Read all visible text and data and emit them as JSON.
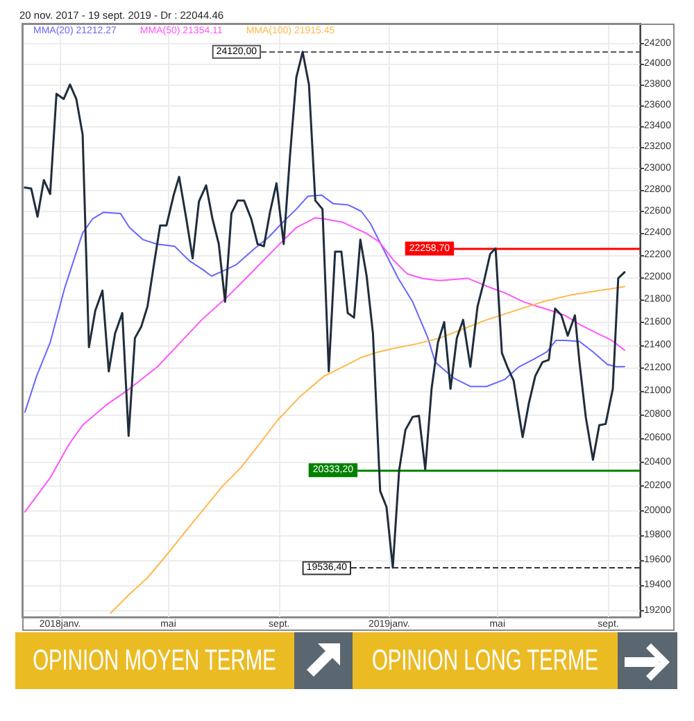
{
  "chart_data": {
    "type": "line",
    "title": "20 nov. 2017 - 19 sept. 2019 - Dr : 22044.46",
    "log": true,
    "grid": true,
    "legend": "top left",
    "xlim": [
      "2017-11-20",
      "2019-10-06"
    ],
    "xticks": [
      {
        "value": "2018-01-01",
        "label": "2018janv."
      },
      {
        "value": "2018-05-01",
        "label": "mai"
      },
      {
        "value": "2018-09-01",
        "label": "sept."
      },
      {
        "value": "2019-01-01",
        "label": "2019janv."
      },
      {
        "value": "2019-05-01",
        "label": "mai"
      },
      {
        "value": "2019-09-01",
        "label": "sept."
      }
    ],
    "ylim": [
      19150,
      24400
    ],
    "yticks": [
      19200,
      19400,
      19600,
      19800,
      20000,
      20200,
      20400,
      20600,
      20800,
      21000,
      21200,
      21400,
      21600,
      21800,
      22000,
      22200,
      22400,
      22600,
      22800,
      23000,
      23200,
      23400,
      23600,
      23800,
      24000,
      24200
    ],
    "series": [
      {
        "color": "#1f2d3d",
        "x": [
          "2017-11-23",
          "2017-11-30",
          "2017-12-07",
          "2017-12-14",
          "2017-12-21",
          "2017-12-28",
          "2018-01-05",
          "2018-01-12",
          "2018-01-19",
          "2018-01-26",
          "2018-02-02",
          "2018-02-09",
          "2018-02-17",
          "2018-02-24",
          "2018-03-03",
          "2018-03-11",
          "2018-03-18",
          "2018-03-25",
          "2018-04-01",
          "2018-04-08",
          "2018-04-15",
          "2018-04-22",
          "2018-04-29",
          "2018-05-07",
          "2018-05-13",
          "2018-05-21",
          "2018-05-28",
          "2018-06-04",
          "2018-06-12",
          "2018-06-19",
          "2018-06-26",
          "2018-07-03",
          "2018-07-10",
          "2018-07-17",
          "2018-07-24",
          "2018-08-01",
          "2018-08-08",
          "2018-08-15",
          "2018-08-22",
          "2018-08-29",
          "2018-09-06",
          "2018-09-13",
          "2018-09-20",
          "2018-09-27",
          "2018-10-04",
          "2018-10-11",
          "2018-10-19",
          "2018-10-26",
          "2018-11-02",
          "2018-11-09",
          "2018-11-16",
          "2018-11-23",
          "2018-11-30",
          "2018-12-07",
          "2018-12-14",
          "2018-12-22",
          "2018-12-29",
          "2019-01-05",
          "2019-01-12",
          "2019-01-19",
          "2019-01-27",
          "2019-02-03",
          "2019-02-10",
          "2019-02-17",
          "2019-02-24",
          "2019-03-03",
          "2019-03-10",
          "2019-03-17",
          "2019-03-24",
          "2019-04-01",
          "2019-04-09",
          "2019-04-16",
          "2019-04-23",
          "2019-04-29",
          "2019-05-06",
          "2019-05-12",
          "2019-05-19",
          "2019-05-29",
          "2019-06-05",
          "2019-06-12",
          "2019-06-20",
          "2019-06-27",
          "2019-07-04",
          "2019-07-11",
          "2019-07-18",
          "2019-07-26",
          "2019-07-31",
          "2019-08-07",
          "2019-08-15",
          "2019-08-22",
          "2019-08-29",
          "2019-09-06",
          "2019-09-12",
          "2019-09-19"
        ],
        "values": [
          22820,
          22810,
          22550,
          22890,
          22760,
          23710,
          23660,
          23800,
          23660,
          23320,
          21380,
          21700,
          21880,
          21170,
          21500,
          21680,
          20620,
          21460,
          21560,
          21740,
          22110,
          22470,
          22470,
          22750,
          22920,
          22530,
          22170,
          22690,
          22840,
          22530,
          22300,
          21780,
          22580,
          22700,
          22700,
          22530,
          22300,
          22280,
          22600,
          22860,
          22300,
          23120,
          23870,
          24120,
          23800,
          22700,
          22620,
          21170,
          22230,
          22230,
          21680,
          21640,
          22340,
          22010,
          21500,
          20160,
          20030,
          19540,
          20330,
          20670,
          20780,
          20790,
          20340,
          21020,
          21420,
          21600,
          21020,
          21460,
          21620,
          21210,
          21740,
          21960,
          22210,
          22260,
          21330,
          21210,
          21090,
          20610,
          20900,
          21130,
          21250,
          21270,
          21720,
          21660,
          21480,
          21660,
          21250,
          20780,
          20420,
          20710,
          20720,
          21020,
          21990,
          22044.46
        ]
      },
      {
        "name": "MMA(20) 21212.27",
        "color": "#6666ff",
        "x": [
          "2017-11-23",
          "2017-12-06",
          "2017-12-21",
          "2018-01-06",
          "2018-01-26",
          "2018-02-06",
          "2018-02-18",
          "2018-03-09",
          "2018-03-19",
          "2018-04-03",
          "2018-04-18",
          "2018-05-08",
          "2018-05-24",
          "2018-06-08",
          "2018-06-18",
          "2018-06-29",
          "2018-07-15",
          "2018-08-05",
          "2018-08-20",
          "2018-09-04",
          "2018-09-20",
          "2018-10-03",
          "2018-10-18",
          "2018-10-31",
          "2018-11-16",
          "2018-12-01",
          "2018-12-11",
          "2018-12-27",
          "2019-01-11",
          "2019-01-27",
          "2019-02-13",
          "2019-02-21",
          "2019-03-14",
          "2019-04-01",
          "2019-04-19",
          "2019-05-09",
          "2019-05-25",
          "2019-06-09",
          "2019-06-25",
          "2019-07-05",
          "2019-07-15",
          "2019-07-31",
          "2019-08-15",
          "2019-08-31",
          "2019-09-10",
          "2019-09-19"
        ],
        "values": [
          20820,
          21130,
          21420,
          21900,
          22400,
          22530,
          22590,
          22580,
          22450,
          22340,
          22300,
          22280,
          22150,
          22070,
          22010,
          22050,
          22110,
          22260,
          22360,
          22490,
          22620,
          22740,
          22750,
          22670,
          22660,
          22600,
          22490,
          22230,
          21990,
          21780,
          21460,
          21250,
          21110,
          21040,
          21040,
          21100,
          21210,
          21270,
          21340,
          21440,
          21440,
          21430,
          21340,
          21230,
          21210,
          21212.27
        ]
      },
      {
        "name": "MMA(50) 21354.11",
        "color": "#ff55ff",
        "x": [
          "2017-11-23",
          "2017-12-21",
          "2018-01-11",
          "2018-01-26",
          "2018-02-21",
          "2018-03-19",
          "2018-04-19",
          "2018-05-19",
          "2018-06-07",
          "2018-07-05",
          "2018-07-31",
          "2018-08-30",
          "2018-09-20",
          "2018-10-11",
          "2018-10-21",
          "2018-11-10",
          "2018-12-06",
          "2018-12-21",
          "2019-01-06",
          "2019-01-21",
          "2019-02-06",
          "2019-02-26",
          "2019-03-29",
          "2019-04-19",
          "2019-05-09",
          "2019-05-30",
          "2019-06-14",
          "2019-06-30",
          "2019-07-15",
          "2019-07-31",
          "2019-08-20",
          "2019-09-05",
          "2019-09-19"
        ],
        "values": [
          19990,
          20270,
          20550,
          20710,
          20880,
          21020,
          21210,
          21460,
          21620,
          21820,
          22030,
          22280,
          22450,
          22540,
          22530,
          22500,
          22400,
          22320,
          22150,
          22030,
          21990,
          21970,
          21990,
          21920,
          21860,
          21780,
          21740,
          21700,
          21660,
          21580,
          21500,
          21440,
          21354.11
        ]
      },
      {
        "name": "MMA(100) 21915.45",
        "color": "#ffb84d",
        "x": [
          "2018-02-26",
          "2018-03-19",
          "2018-04-08",
          "2018-04-29",
          "2018-05-19",
          "2018-06-09",
          "2018-06-30",
          "2018-07-20",
          "2018-08-10",
          "2018-08-30",
          "2018-09-25",
          "2018-10-21",
          "2018-11-16",
          "2018-12-01",
          "2018-12-16",
          "2019-01-06",
          "2019-02-01",
          "2019-02-26",
          "2019-03-24",
          "2019-04-19",
          "2019-05-20",
          "2019-06-20",
          "2019-07-21",
          "2019-08-21",
          "2019-09-19"
        ],
        "values": [
          19180,
          19330,
          19460,
          19640,
          19820,
          20010,
          20200,
          20350,
          20550,
          20750,
          20960,
          21130,
          21230,
          21290,
          21330,
          21370,
          21410,
          21460,
          21540,
          21620,
          21700,
          21780,
          21840,
          21880,
          21915.45
        ]
      }
    ],
    "ref_lines": [
      {
        "axis": "y",
        "value": 24120,
        "label": "24120,00",
        "color": "#555555",
        "line_style": "dashed"
      },
      {
        "axis": "y",
        "value": 22258.7,
        "label": "22258,70",
        "color": "#ff0000"
      },
      {
        "axis": "y",
        "value": 20333.2,
        "label": "20333,20",
        "color": "#008000"
      },
      {
        "axis": "y",
        "value": 19536.4,
        "label": "19536,40",
        "color": "#333333",
        "line_style": "dashed"
      }
    ],
    "annotations": [
      "OPINION MOYEN TERME",
      "OPINION LONG TERME"
    ]
  }
}
